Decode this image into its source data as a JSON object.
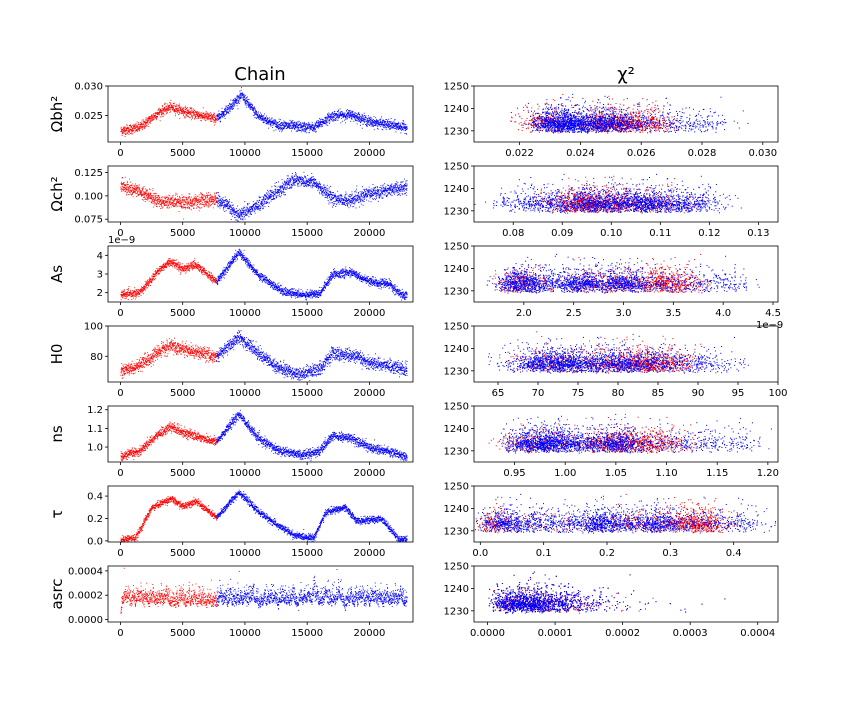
{
  "column_titles": {
    "chain": "Chain",
    "chi2": "χ²"
  },
  "colors": {
    "burn_in": "#ff0000",
    "samples": "#0000ff"
  },
  "chart_data": {
    "type": "scatter",
    "burn_in_end_step": 7700,
    "chain_steps": 23000,
    "chi2_axis": {
      "ylim": [
        1225,
        1250
      ],
      "yticks": [
        1230,
        1240,
        1250
      ]
    },
    "chain_xticks": [
      0,
      5000,
      10000,
      15000,
      20000
    ],
    "params": [
      {
        "ylabel": "Ωbh²",
        "chain_ylim": [
          0.0205,
          0.03
        ],
        "chain_yticks": [
          "0.025",
          "0.030"
        ],
        "chain_ytick_values": [
          0.025,
          0.03
        ],
        "trace_knots": [
          [
            0,
            0.0225
          ],
          [
            1500,
            0.023
          ],
          [
            3000,
            0.0255
          ],
          [
            4000,
            0.0265
          ],
          [
            5500,
            0.0255
          ],
          [
            7700,
            0.0245
          ],
          [
            8500,
            0.026
          ],
          [
            9700,
            0.0285
          ],
          [
            11000,
            0.025
          ],
          [
            12500,
            0.0235
          ],
          [
            14000,
            0.0232
          ],
          [
            15500,
            0.023
          ],
          [
            17000,
            0.025
          ],
          [
            18500,
            0.0252
          ],
          [
            20000,
            0.024
          ],
          [
            21500,
            0.0235
          ],
          [
            23000,
            0.023
          ]
        ],
        "trace_noise": 0.0007,
        "scatter_xlim": [
          0.0205,
          0.0305
        ],
        "scatter_xticks": [
          "0.022",
          "0.024",
          "0.026",
          "0.028",
          "0.030"
        ],
        "scatter_xtick_values": [
          0.022,
          0.024,
          0.026,
          0.028,
          0.03
        ]
      },
      {
        "ylabel": "Ωch²",
        "chain_ylim": [
          0.072,
          0.132
        ],
        "chain_yticks": [
          "0.075",
          "0.100",
          "0.125"
        ],
        "chain_ytick_values": [
          0.075,
          0.1,
          0.125
        ],
        "trace_knots": [
          [
            0,
            0.112
          ],
          [
            1500,
            0.105
          ],
          [
            3000,
            0.095
          ],
          [
            5000,
            0.093
          ],
          [
            7700,
            0.097
          ],
          [
            9500,
            0.08
          ],
          [
            11000,
            0.09
          ],
          [
            12500,
            0.105
          ],
          [
            14000,
            0.118
          ],
          [
            15500,
            0.115
          ],
          [
            17000,
            0.098
          ],
          [
            18500,
            0.095
          ],
          [
            20000,
            0.103
          ],
          [
            21500,
            0.107
          ],
          [
            23000,
            0.11
          ]
        ],
        "trace_noise": 0.006,
        "scatter_xlim": [
          0.072,
          0.134
        ],
        "scatter_xticks": [
          "0.08",
          "0.09",
          "0.10",
          "0.11",
          "0.12",
          "0.13"
        ],
        "scatter_xtick_values": [
          0.08,
          0.09,
          0.1,
          0.11,
          0.12,
          0.13
        ]
      },
      {
        "ylabel": "As",
        "chain_ylim": [
          1.5e-09,
          4.5e-09
        ],
        "chain_yticks": [
          "2",
          "3",
          "4"
        ],
        "chain_ytick_values": [
          2e-09,
          3e-09,
          4e-09
        ],
        "offset_text": "1e−9",
        "trace_knots": [
          [
            0,
            1.9e-09
          ],
          [
            1500,
            2e-09
          ],
          [
            3000,
            3.2e-09
          ],
          [
            4000,
            3.7e-09
          ],
          [
            5000,
            3.3e-09
          ],
          [
            6000,
            3.5e-09
          ],
          [
            7700,
            2.6e-09
          ],
          [
            9500,
            4.2e-09
          ],
          [
            11000,
            3e-09
          ],
          [
            13000,
            2.1e-09
          ],
          [
            14500,
            1.9e-09
          ],
          [
            16000,
            2e-09
          ],
          [
            17000,
            3e-09
          ],
          [
            18500,
            3.1e-09
          ],
          [
            20000,
            2.6e-09
          ],
          [
            21500,
            2.5e-09
          ],
          [
            22500,
            1.9e-09
          ],
          [
            23000,
            1.9e-09
          ]
        ],
        "trace_noise": 1.8e-10,
        "scatter_xlim": [
          1.5e-09,
          4.55e-09
        ],
        "scatter_xticks": [
          "2.0",
          "2.5",
          "3.0",
          "3.5",
          "4.0",
          "4.5"
        ],
        "scatter_xtick_values": [
          2e-09,
          2.5e-09,
          3e-09,
          3.5e-09,
          4e-09,
          4.5e-09
        ],
        "scatter_offset_text": "1e−9"
      },
      {
        "ylabel": "H0",
        "chain_ylim": [
          63,
          100
        ],
        "chain_yticks": [
          "80",
          "100"
        ],
        "chain_ytick_values": [
          80,
          100
        ],
        "trace_knots": [
          [
            0,
            70
          ],
          [
            1500,
            74
          ],
          [
            3000,
            83
          ],
          [
            4000,
            87
          ],
          [
            5500,
            84
          ],
          [
            7700,
            80
          ],
          [
            9500,
            93
          ],
          [
            11000,
            83
          ],
          [
            12500,
            73
          ],
          [
            14500,
            68
          ],
          [
            16000,
            72
          ],
          [
            17000,
            82
          ],
          [
            18500,
            81
          ],
          [
            20000,
            76
          ],
          [
            21500,
            74
          ],
          [
            23000,
            71
          ]
        ],
        "trace_noise": 3.5,
        "scatter_xlim": [
          62,
          100
        ],
        "scatter_xticks": [
          "65",
          "70",
          "75",
          "80",
          "85",
          "90",
          "95",
          "100"
        ],
        "scatter_xtick_values": [
          65,
          70,
          75,
          80,
          85,
          90,
          95,
          100
        ]
      },
      {
        "ylabel": "ns",
        "chain_ylim": [
          0.92,
          1.22
        ],
        "chain_yticks": [
          "1.0",
          "1.1",
          "1.2"
        ],
        "chain_ytick_values": [
          1.0,
          1.1,
          1.2
        ],
        "trace_knots": [
          [
            0,
            0.95
          ],
          [
            1500,
            0.98
          ],
          [
            3000,
            1.07
          ],
          [
            4000,
            1.11
          ],
          [
            5500,
            1.07
          ],
          [
            7700,
            1.03
          ],
          [
            9500,
            1.18
          ],
          [
            11000,
            1.05
          ],
          [
            12500,
            0.99
          ],
          [
            14500,
            0.96
          ],
          [
            16000,
            0.98
          ],
          [
            17000,
            1.06
          ],
          [
            18500,
            1.05
          ],
          [
            20000,
            1.0
          ],
          [
            21500,
            0.98
          ],
          [
            23000,
            0.95
          ]
        ],
        "trace_noise": 0.02,
        "scatter_xlim": [
          0.91,
          1.21
        ],
        "scatter_xticks": [
          "0.95",
          "1.00",
          "1.05",
          "1.10",
          "1.15",
          "1.20"
        ],
        "scatter_xtick_values": [
          0.95,
          1.0,
          1.05,
          1.1,
          1.15,
          1.2
        ]
      },
      {
        "ylabel": "τ",
        "chain_ylim": [
          -0.01,
          0.49
        ],
        "chain_yticks": [
          "0.0",
          "0.2",
          "0.4"
        ],
        "chain_ytick_values": [
          0.0,
          0.2,
          0.4
        ],
        "trace_knots": [
          [
            0,
            0.02
          ],
          [
            1200,
            0.03
          ],
          [
            2500,
            0.3
          ],
          [
            4000,
            0.38
          ],
          [
            5000,
            0.31
          ],
          [
            6000,
            0.36
          ],
          [
            7700,
            0.21
          ],
          [
            9500,
            0.44
          ],
          [
            11000,
            0.27
          ],
          [
            12500,
            0.15
          ],
          [
            14000,
            0.05
          ],
          [
            15500,
            0.03
          ],
          [
            16500,
            0.26
          ],
          [
            18000,
            0.3
          ],
          [
            19000,
            0.18
          ],
          [
            21000,
            0.2
          ],
          [
            22300,
            0.02
          ],
          [
            23000,
            0.02
          ]
        ],
        "trace_noise": 0.025,
        "scatter_xlim": [
          -0.01,
          0.47
        ],
        "scatter_xticks": [
          "0.0",
          "0.1",
          "0.2",
          "0.3",
          "0.4"
        ],
        "scatter_xtick_values": [
          0.0,
          0.1,
          0.2,
          0.3,
          0.4
        ]
      },
      {
        "ylabel": "asrc",
        "chain_ylim": [
          -2e-05,
          0.00044
        ],
        "chain_yticks": [
          "0.0000",
          "0.0002",
          "0.0004"
        ],
        "chain_ytick_values": [
          0.0,
          0.0002,
          0.0004
        ],
        "trace_knots": [
          [
            0,
            0.0001
          ],
          [
            23000,
            0.0001
          ]
        ],
        "trace_noise": 8e-05,
        "scatter_xlim": [
          -2e-05,
          0.00043
        ],
        "scatter_xticks": [
          "0.0000",
          "0.0001",
          "0.0002",
          "0.0003",
          "0.0004"
        ],
        "scatter_xtick_values": [
          0.0,
          0.0001,
          0.0002,
          0.0003,
          0.0004
        ]
      }
    ]
  }
}
